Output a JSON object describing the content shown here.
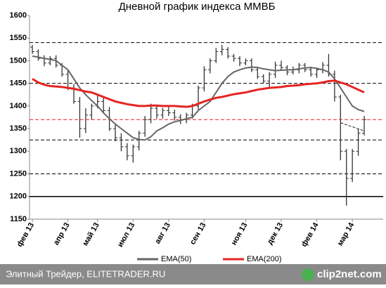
{
  "chart_data": {
    "type": "ohlc",
    "title": "Дневной график индекса ММВБ",
    "categories": [
      "фев 13",
      null,
      null,
      null,
      null,
      null,
      "апр 13",
      null,
      null,
      null,
      null,
      "май 13",
      null,
      null,
      null,
      null,
      null,
      "июл 13",
      null,
      null,
      null,
      null,
      null,
      "авг 13",
      null,
      null,
      null,
      null,
      null,
      "сен 13",
      null,
      null,
      null,
      null,
      null,
      null,
      "ноя 13",
      null,
      null,
      null,
      null,
      null,
      "дек 13",
      null,
      null,
      null,
      null,
      null,
      "фев 14",
      null,
      null,
      null,
      null,
      null,
      "мар 14",
      null,
      null
    ],
    "open": [
      1530,
      1520,
      1505,
      1495,
      1505,
      1490,
      1470,
      1440,
      1410,
      1350,
      1380,
      1400,
      1410,
      1390,
      1350,
      1330,
      1310,
      1290,
      1310,
      1340,
      1370,
      1395,
      1380,
      1390,
      1385,
      1375,
      1370,
      1380,
      1400,
      1440,
      1480,
      1500,
      1520,
      1525,
      1510,
      1505,
      1495,
      1500,
      1480,
      1465,
      1455,
      1470,
      1490,
      1485,
      1475,
      1480,
      1490,
      1480,
      1470,
      1480,
      1490,
      1470,
      1420,
      1300,
      1240,
      1300,
      1340
    ],
    "high": [
      1535,
      1525,
      1512,
      1510,
      1512,
      1495,
      1478,
      1448,
      1420,
      1395,
      1405,
      1425,
      1418,
      1398,
      1360,
      1340,
      1318,
      1315,
      1345,
      1378,
      1405,
      1400,
      1396,
      1398,
      1392,
      1382,
      1385,
      1405,
      1445,
      1488,
      1505,
      1528,
      1535,
      1530,
      1515,
      1510,
      1505,
      1505,
      1487,
      1470,
      1475,
      1498,
      1500,
      1490,
      1487,
      1495,
      1495,
      1487,
      1485,
      1497,
      1515,
      1478,
      1425,
      1305,
      1305,
      1350,
      1378
    ],
    "low": [
      1515,
      1500,
      1488,
      1490,
      1485,
      1465,
      1435,
      1405,
      1330,
      1340,
      1370,
      1395,
      1385,
      1345,
      1322,
      1300,
      1280,
      1275,
      1302,
      1332,
      1362,
      1372,
      1372,
      1378,
      1368,
      1360,
      1362,
      1372,
      1392,
      1432,
      1472,
      1495,
      1512,
      1505,
      1498,
      1488,
      1490,
      1475,
      1460,
      1450,
      1440,
      1462,
      1478,
      1468,
      1470,
      1472,
      1475,
      1465,
      1462,
      1472,
      1465,
      1410,
      1280,
      1180,
      1232,
      1290,
      1335
    ],
    "close": [
      1520,
      1505,
      1495,
      1505,
      1490,
      1470,
      1440,
      1410,
      1350,
      1380,
      1400,
      1410,
      1390,
      1350,
      1330,
      1310,
      1290,
      1310,
      1340,
      1370,
      1395,
      1380,
      1390,
      1385,
      1375,
      1370,
      1380,
      1400,
      1440,
      1480,
      1500,
      1520,
      1525,
      1510,
      1505,
      1495,
      1500,
      1480,
      1465,
      1455,
      1470,
      1490,
      1485,
      1475,
      1480,
      1490,
      1480,
      1470,
      1480,
      1490,
      1470,
      1420,
      1300,
      1240,
      1300,
      1340,
      1370
    ],
    "bar_color": "#333333",
    "series": [
      {
        "name": "EMA(50)",
        "color": "#666666",
        "values": [
          1510,
          1508,
          1505,
          1503,
          1500,
          1490,
          1480,
          1460,
          1440,
          1425,
          1412,
          1400,
          1385,
          1372,
          1360,
          1350,
          1340,
          1330,
          1326,
          1325,
          1332,
          1345,
          1352,
          1360,
          1365,
          1368,
          1372,
          1375,
          1390,
          1400,
          1410,
          1430,
          1450,
          1465,
          1475,
          1480,
          1484,
          1486,
          1485,
          1482,
          1480,
          1478,
          1479,
          1480,
          1480,
          1482,
          1484,
          1485,
          1483,
          1480,
          1475,
          1460,
          1440,
          1420,
          1400,
          1392,
          1388
        ]
      },
      {
        "name": "EMA(200)",
        "color": "#e52420",
        "values": [
          1460,
          1452,
          1447,
          1444,
          1443,
          1442,
          1440,
          1438,
          1435,
          1432,
          1430,
          1425,
          1420,
          1415,
          1410,
          1407,
          1404,
          1402,
          1400,
          1400,
          1401,
          1401,
          1400,
          1400,
          1400,
          1399,
          1398,
          1400,
          1405,
          1410,
          1414,
          1418,
          1420,
          1423,
          1426,
          1428,
          1430,
          1433,
          1436,
          1438,
          1440,
          1441,
          1442,
          1444,
          1445,
          1446,
          1448,
          1449,
          1450,
          1452,
          1455,
          1456,
          1452,
          1448,
          1442,
          1436,
          1430
        ]
      }
    ],
    "hlines": [
      {
        "value": 1540,
        "color": "#000000",
        "style": "dashed"
      },
      {
        "value": 1450,
        "color": "#000000",
        "style": "dashed"
      },
      {
        "value": 1370,
        "color": "#e52420",
        "style": "dashed"
      },
      {
        "value": 1325,
        "color": "#000000",
        "style": "dashed"
      },
      {
        "value": 1250,
        "color": "#000000",
        "style": "dashed"
      },
      {
        "value": 1200,
        "color": "#000000",
        "style": "solid"
      }
    ],
    "trendline": {
      "x": [
        52,
        56
      ],
      "values": [
        1363,
        1345
      ]
    },
    "ylim": [
      1150,
      1600
    ],
    "yticks": [
      1150,
      1200,
      1250,
      1300,
      1350,
      1400,
      1450,
      1500,
      1550,
      1600
    ]
  },
  "footer": {
    "source": "Элитный Трейдер, ELITETRADER.RU",
    "logo": "clip2net.com"
  }
}
